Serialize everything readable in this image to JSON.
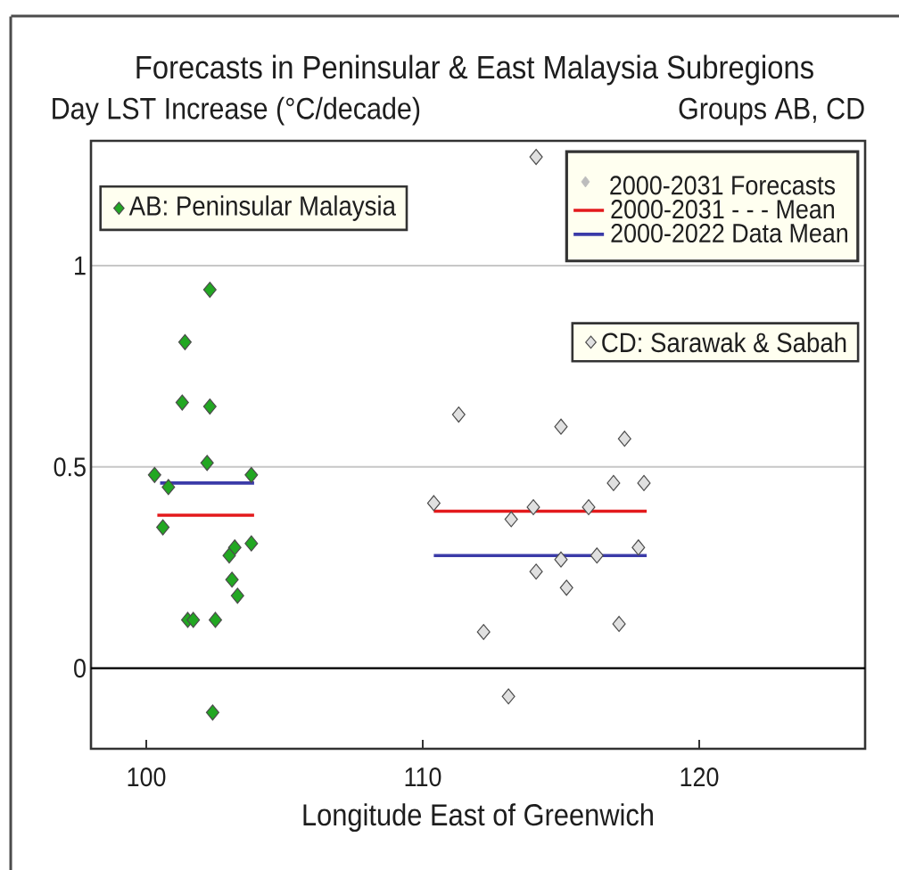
{
  "chart_data": {
    "type": "scatter",
    "title": "Forecasts in Peninsular & East Malaysia Subregions",
    "subtitle": "Groups AB, CD",
    "ylabel": "Day LST Increase (°C/decade)",
    "xlabel": "Longitude East of Greenwich",
    "legend_title": "2000-2031 Forecasts",
    "xlim": [
      98,
      126
    ],
    "ylim": [
      -0.2,
      1.31
    ],
    "xticks": [
      100,
      110,
      120
    ],
    "yticks": [
      0,
      0.5,
      1
    ],
    "grid": "y",
    "legend": "top right",
    "marker": "diamond",
    "ref_lines": [
      {
        "axis": "y",
        "value": 0,
        "color": "#000000"
      }
    ],
    "series": [
      {
        "name": "AB: Peninsular Malaysia",
        "color": "#22a722",
        "x": [
          102.3,
          101.4,
          101.3,
          102.3,
          102.2,
          100.3,
          100.8,
          103.8,
          100.6,
          103.2,
          103.0,
          103.8,
          103.1,
          103.3,
          101.5,
          101.7,
          102.5,
          102.4
        ],
        "values": [
          0.94,
          0.81,
          0.66,
          0.65,
          0.51,
          0.48,
          0.45,
          0.48,
          0.35,
          0.3,
          0.28,
          0.31,
          0.22,
          0.18,
          0.12,
          0.12,
          0.12,
          -0.11
        ]
      },
      {
        "name": "CD: Sarawak & Sabah",
        "color": "#e0e0e0",
        "x": [
          114.1,
          111.3,
          115.0,
          117.3,
          116.9,
          118.0,
          110.4,
          114.0,
          116.0,
          113.2,
          117.8,
          115.0,
          116.3,
          114.1,
          115.2,
          117.1,
          112.2,
          113.1
        ],
        "values": [
          1.27,
          0.63,
          0.6,
          0.57,
          0.46,
          0.46,
          0.41,
          0.4,
          0.4,
          0.37,
          0.3,
          0.27,
          0.28,
          0.24,
          0.2,
          0.11,
          0.09,
          -0.07
        ]
      },
      {
        "type": "line",
        "name": "2000-2031 - - - Mean",
        "color": "#e31a1c",
        "marker": "none",
        "x": [
          100.4,
          103.9
        ],
        "values": [
          0.38,
          0.38
        ]
      },
      {
        "type": "line",
        "color": "#e31a1c",
        "marker": "none",
        "x": [
          110.4,
          118.1
        ],
        "values": [
          0.39,
          0.39
        ]
      },
      {
        "type": "line",
        "name": "2000-2022 Data Mean",
        "color": "#3b3ba8",
        "marker": "none",
        "x": [
          100.5,
          103.9
        ],
        "values": [
          0.46,
          0.46
        ]
      },
      {
        "type": "line",
        "color": "#3b3ba8",
        "marker": "none",
        "x": [
          110.4,
          118.1
        ],
        "values": [
          0.28,
          0.28
        ]
      }
    ]
  }
}
